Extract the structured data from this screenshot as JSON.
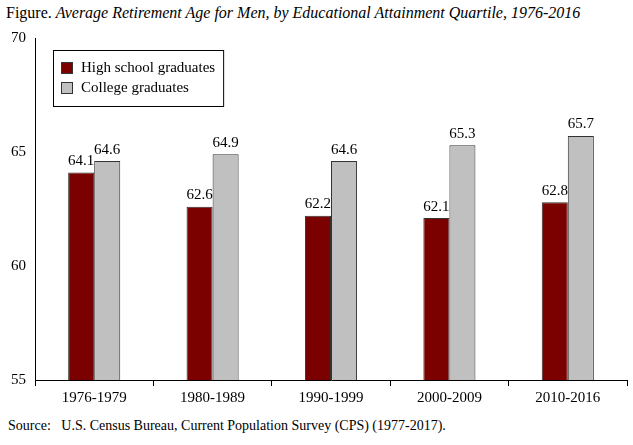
{
  "chart_data": {
    "type": "bar",
    "title": "Figure. Average Retirement Age for Men, by Educational Attainment Quartile, 1976-2016",
    "categories": [
      "1976-1979",
      "1980-1989",
      "1990-1999",
      "2000-2009",
      "2010-2016"
    ],
    "series": [
      {
        "name": "High school graduates",
        "color": "#7b0000",
        "values": [
          64.1,
          62.6,
          62.2,
          62.1,
          62.8
        ]
      },
      {
        "name": "College graduates",
        "color": "#c0c0c0",
        "values": [
          64.6,
          64.9,
          64.6,
          65.3,
          65.7
        ]
      }
    ],
    "ylim": [
      55,
      70
    ],
    "yticks": [
      55,
      60,
      65,
      70
    ],
    "grid": false,
    "legend": "top-left",
    "data_labels": true,
    "annotations": [
      "Source:   U.S. Census Bureau, Current Population Survey (CPS) (1977-2017)."
    ]
  }
}
